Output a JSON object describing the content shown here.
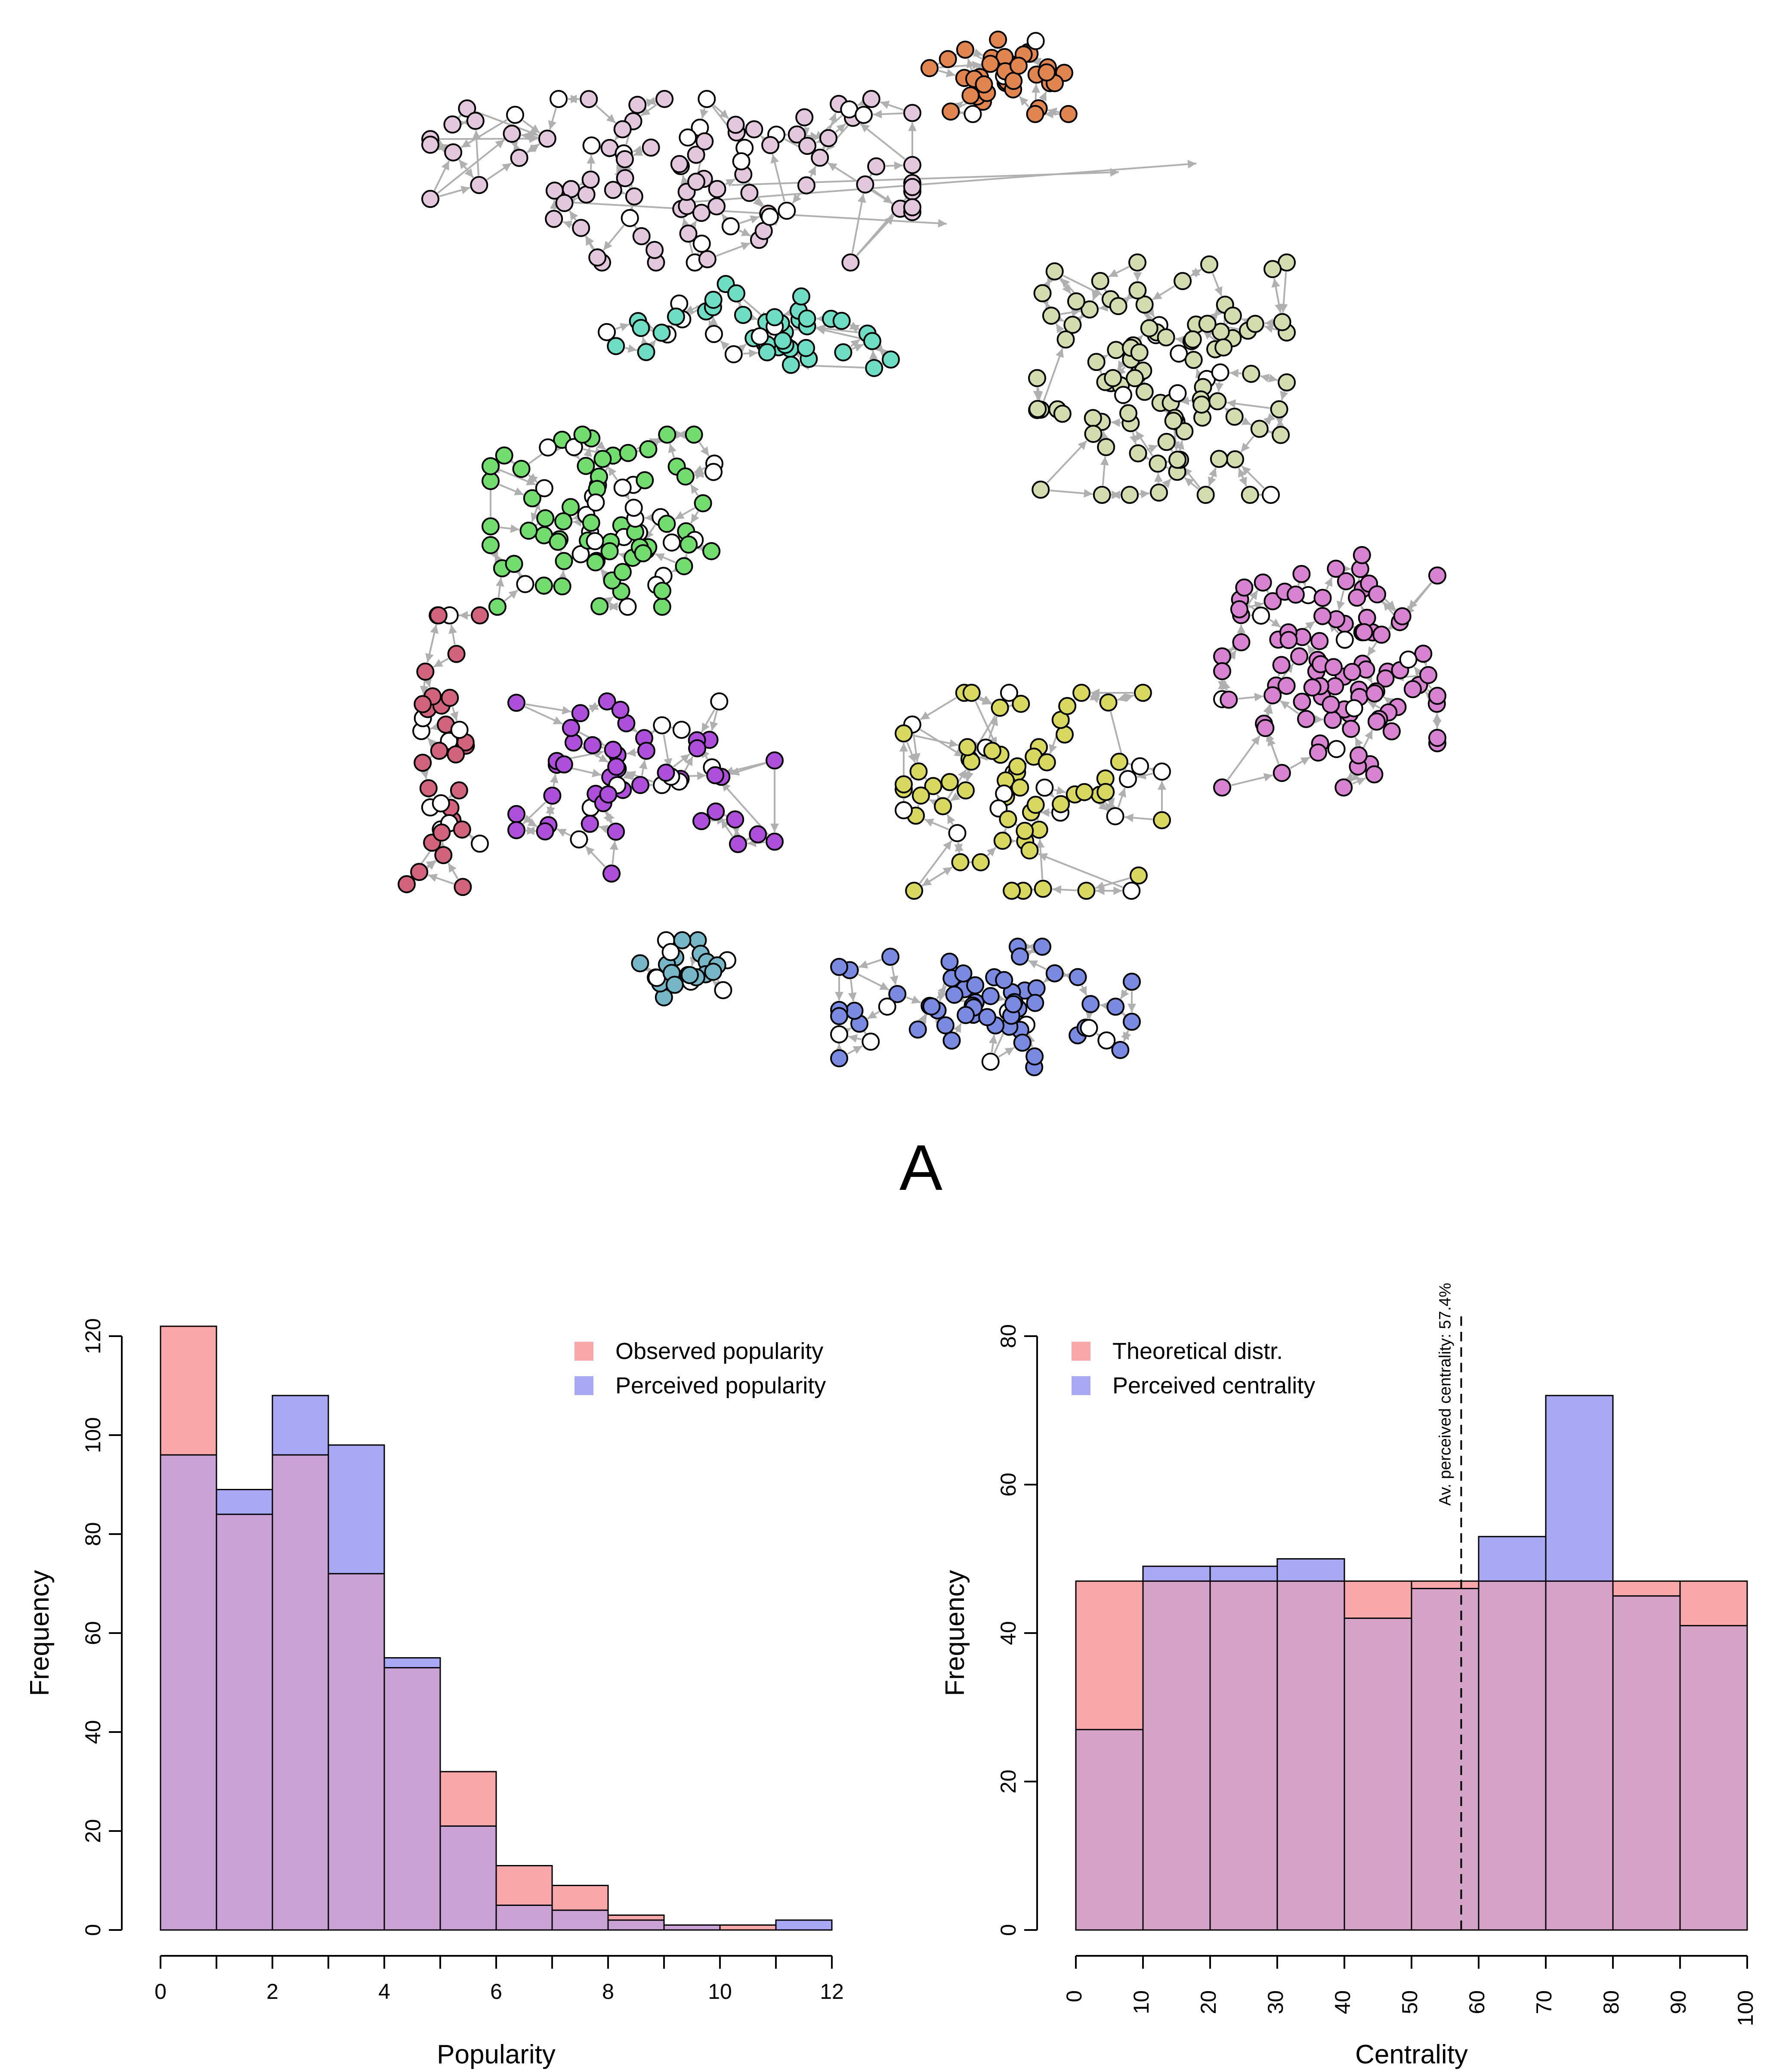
{
  "figure_label": "A",
  "colors": {
    "edge": "#b0b0b0",
    "node_stroke": "#000000",
    "unlabeled": "#ffffff",
    "overlay_red": "#f8a8a8",
    "overlay_blue": "#a8a8f4",
    "overlap": "#cba2d6",
    "overlap_right": "#d6a3c8"
  },
  "network": {
    "clusters": [
      {
        "name": "orange",
        "color": "#e08450"
      },
      {
        "name": "light-pink",
        "color": "#e3c7dc"
      },
      {
        "name": "teal",
        "color": "#6fdcc4"
      },
      {
        "name": "khaki",
        "color": "#d2dcae"
      },
      {
        "name": "green",
        "color": "#72dc6e"
      },
      {
        "name": "orchid",
        "color": "#d883d2"
      },
      {
        "name": "crimson",
        "color": "#d2637c"
      },
      {
        "name": "purple",
        "color": "#ad4fdb"
      },
      {
        "name": "yellow",
        "color": "#d8d860"
      },
      {
        "name": "cadet",
        "color": "#76b6c6"
      },
      {
        "name": "slate-blue",
        "color": "#7a8ae0"
      }
    ]
  },
  "chart_data": [
    {
      "type": "bar",
      "xlabel": "Popularity",
      "ylabel": "Frequency",
      "xlim": [
        0,
        12
      ],
      "ylim": [
        0,
        120
      ],
      "xticks": [
        "0",
        "2",
        "4",
        "6",
        "8",
        "10",
        "12"
      ],
      "yticks": [
        "0",
        "20",
        "40",
        "60",
        "80",
        "100",
        "120"
      ],
      "bin_edges": [
        0,
        1,
        2,
        3,
        4,
        5,
        6,
        7,
        8,
        9,
        10,
        11,
        12
      ],
      "legend_position": "top-right",
      "series": [
        {
          "name": "Observed popularity",
          "color": "#f8a8a8",
          "values": [
            122,
            84,
            96,
            72,
            53,
            32,
            13,
            9,
            3,
            1,
            1,
            0
          ]
        },
        {
          "name": "Perceived popularity",
          "color": "#a8a8f4",
          "values": [
            96,
            89,
            108,
            98,
            55,
            21,
            5,
            4,
            2,
            1,
            0,
            2
          ]
        }
      ]
    },
    {
      "type": "bar",
      "xlabel": "Centrality",
      "ylabel": "Frequency",
      "xlim": [
        0,
        100
      ],
      "ylim": [
        0,
        80
      ],
      "xticks": [
        "0",
        "10",
        "20",
        "30",
        "40",
        "50",
        "60",
        "70",
        "80",
        "90",
        "100"
      ],
      "yticks": [
        "0",
        "20",
        "40",
        "60",
        "80"
      ],
      "bin_edges": [
        0,
        10,
        20,
        30,
        40,
        50,
        60,
        70,
        80,
        90,
        100
      ],
      "legend_position": "top-left",
      "series": [
        {
          "name": "Theoretical distr.",
          "color": "#f8a8a8",
          "values": [
            47,
            47,
            47,
            47,
            47,
            47,
            47,
            47,
            47,
            47
          ]
        },
        {
          "name": "Perceived centrality",
          "color": "#a8a8f4",
          "values": [
            27,
            49,
            49,
            50,
            42,
            46,
            53,
            72,
            45,
            41
          ]
        }
      ],
      "vline": {
        "x": 57.4,
        "label": "Av. perceived centrality: 57.4%"
      }
    }
  ]
}
